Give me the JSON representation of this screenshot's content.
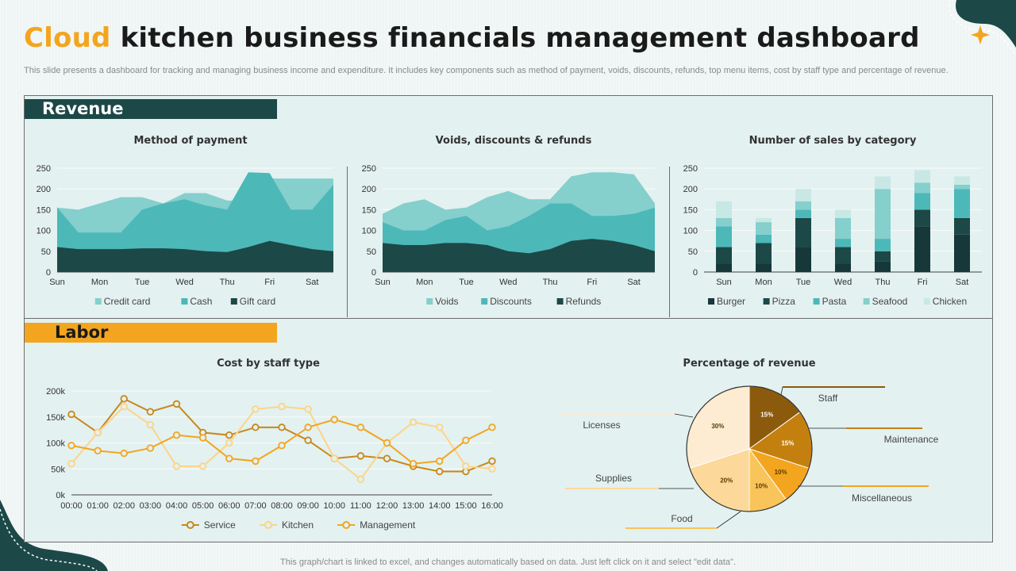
{
  "header": {
    "title_accent": "Cloud",
    "title_rest": "kitchen business financials management dashboard",
    "description": "This slide presents a dashboard for tracking and managing business income and expenditure. It includes key components such as method of payment, voids, discounts, refunds, top menu items, cost by staff type and percentage of revenue."
  },
  "sections": {
    "revenue": "Revenue",
    "labor": "Labor"
  },
  "footer": "This graph/chart is linked to excel, and changes automatically based on data. Just left click on it and select \"edit data\".",
  "colors": {
    "dark_teal": "#1d4848",
    "teal": "#4db8b8",
    "light_teal": "#85cfcd",
    "pale_teal": "#c8e8e6",
    "orange": "#f3a51f"
  },
  "chart_data": [
    {
      "id": "payment",
      "type": "area",
      "title": "Method of payment",
      "x": [
        "Sun",
        "",
        "Mon",
        "",
        "Tue",
        "",
        "Wed",
        "",
        "Thu",
        "",
        "Fri",
        "",
        "Sat",
        ""
      ],
      "ylim": [
        0,
        250
      ],
      "yticks": [
        "0",
        "50",
        "100",
        "150",
        "200",
        "250"
      ],
      "legend": "bottom",
      "series": [
        {
          "name": "Credit card",
          "color": "#85cfcd",
          "values": [
            155,
            150,
            165,
            180,
            180,
            165,
            190,
            190,
            172,
            172,
            225,
            225,
            225,
            225
          ]
        },
        {
          "name": "Cash",
          "color": "#4db8b8",
          "values": [
            155,
            95,
            95,
            95,
            150,
            165,
            175,
            160,
            150,
            240,
            238,
            150,
            150,
            210
          ]
        },
        {
          "name": "Gift card",
          "color": "#1d4848",
          "values": [
            60,
            55,
            55,
            55,
            57,
            57,
            55,
            50,
            48,
            60,
            75,
            65,
            55,
            50
          ]
        }
      ]
    },
    {
      "id": "voids",
      "type": "area",
      "title": "Voids, discounts & refunds",
      "x": [
        "Sun",
        "",
        "Mon",
        "",
        "Tue",
        "",
        "Wed",
        "",
        "Thu",
        "",
        "Fri",
        "",
        "Sat",
        ""
      ],
      "ylim": [
        0,
        250
      ],
      "yticks": [
        "0",
        "50",
        "100",
        "150",
        "200",
        "250"
      ],
      "legend": "bottom",
      "series": [
        {
          "name": "Voids",
          "color": "#85cfcd",
          "values": [
            140,
            165,
            175,
            150,
            155,
            180,
            195,
            175,
            175,
            230,
            240,
            240,
            235,
            165
          ]
        },
        {
          "name": "Discounts",
          "color": "#4db8b8",
          "values": [
            120,
            100,
            100,
            125,
            135,
            100,
            110,
            135,
            165,
            165,
            135,
            135,
            140,
            155
          ]
        },
        {
          "name": "Refunds",
          "color": "#1d4848",
          "values": [
            70,
            65,
            65,
            70,
            70,
            65,
            50,
            45,
            55,
            75,
            80,
            75,
            65,
            50
          ]
        }
      ]
    },
    {
      "id": "sales",
      "type": "bar",
      "stacked": true,
      "title": "Number of sales by category",
      "categories": [
        "Sun",
        "Mon",
        "Tue",
        "Wed",
        "Thu",
        "Fri",
        "Sat"
      ],
      "ylim": [
        0,
        250
      ],
      "yticks": [
        "0",
        "50",
        "100",
        "150",
        "200",
        "250"
      ],
      "legend": "bottom",
      "series": [
        {
          "name": "Burger",
          "color": "#163838",
          "values": [
            20,
            20,
            60,
            20,
            25,
            110,
            90
          ]
        },
        {
          "name": "Pizza",
          "color": "#1d4848",
          "values": [
            40,
            50,
            70,
            40,
            25,
            40,
            40
          ]
        },
        {
          "name": "Pasta",
          "color": "#4db8b8",
          "values": [
            50,
            20,
            20,
            20,
            30,
            40,
            70
          ]
        },
        {
          "name": "Seafood",
          "color": "#85cfcd",
          "values": [
            20,
            30,
            20,
            50,
            120,
            25,
            10
          ]
        },
        {
          "name": "Chicken",
          "color": "#c8e8e6",
          "values": [
            40,
            10,
            30,
            20,
            30,
            30,
            20
          ]
        }
      ]
    },
    {
      "id": "staff",
      "type": "line",
      "title": "Cost by staff type",
      "x": [
        "00:00",
        "01:00",
        "02:00",
        "03:00",
        "04:00",
        "05:00",
        "06:00",
        "07:00",
        "08:00",
        "09:00",
        "10:00",
        "11:00",
        "12:00",
        "13:00",
        "14:00",
        "15:00",
        "16:00"
      ],
      "ylim": [
        0,
        200000
      ],
      "yticks": [
        "0k",
        "50k",
        "100k",
        "150k",
        "200k"
      ],
      "legend": "bottom",
      "series": [
        {
          "name": "Service",
          "color": "#c8881a",
          "values": [
            155000,
            120000,
            185000,
            160000,
            175000,
            120000,
            115000,
            130000,
            130000,
            105000,
            70000,
            75000,
            70000,
            55000,
            45000,
            45000,
            65000
          ]
        },
        {
          "name": "Kitchen",
          "color": "#fcd486",
          "values": [
            60000,
            120000,
            170000,
            135000,
            55000,
            55000,
            100000,
            165000,
            170000,
            165000,
            70000,
            30000,
            100000,
            140000,
            130000,
            55000,
            50000
          ]
        },
        {
          "name": "Management",
          "color": "#f3a51f",
          "values": [
            95000,
            85000,
            80000,
            90000,
            115000,
            110000,
            70000,
            65000,
            95000,
            130000,
            145000,
            130000,
            100000,
            60000,
            65000,
            105000,
            130000
          ]
        }
      ]
    },
    {
      "id": "revenue_pct",
      "type": "pie",
      "title": "Percentage of revenue",
      "slices": [
        {
          "name": "Staff",
          "value": 15,
          "label": "15%",
          "color": "#8c5a0c"
        },
        {
          "name": "Maintenance",
          "value": 15,
          "label": "15%",
          "color": "#c4800f"
        },
        {
          "name": "Miscellaneous",
          "value": 10,
          "label": "10%",
          "color": "#f3a51f"
        },
        {
          "name": "Food",
          "value": 10,
          "label": "10%",
          "color": "#f9c45a"
        },
        {
          "name": "Supplies",
          "value": 20,
          "label": "20%",
          "color": "#fcd99a"
        },
        {
          "name": "Licenses",
          "value": 30,
          "label": "30%",
          "color": "#fdebd2"
        }
      ]
    }
  ]
}
